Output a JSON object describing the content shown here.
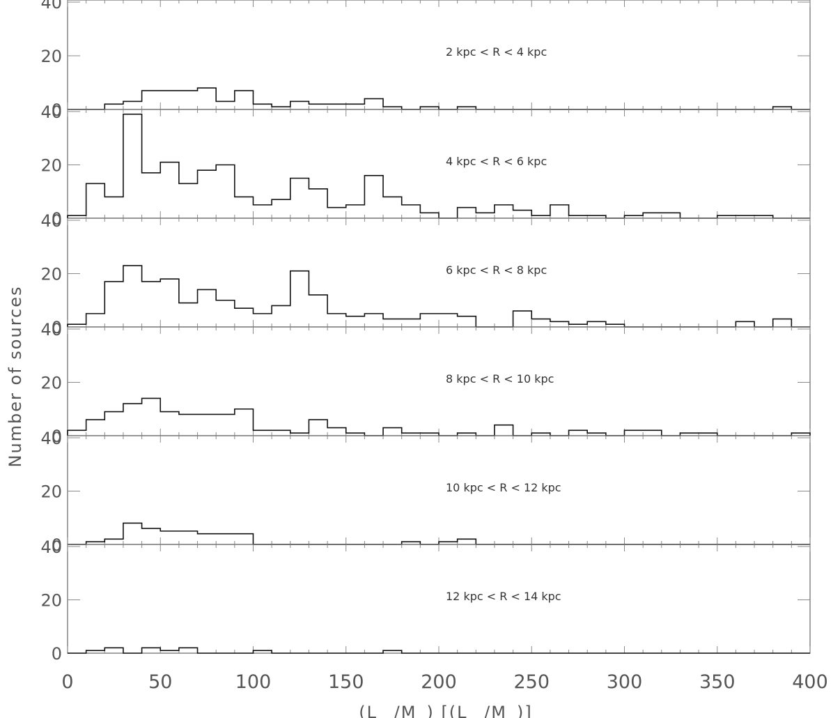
{
  "chart_data": {
    "type": "histogram",
    "ylabel": "Number of sources",
    "xlabel": "(L_ /M_) [(L_ /M_)]",
    "xlim": [
      0,
      400
    ],
    "ylim": [
      0,
      40
    ],
    "x_ticks": [
      "0",
      "50",
      "100",
      "150",
      "200",
      "250",
      "300",
      "350",
      "400"
    ],
    "y_ticks": [
      "0",
      "20",
      "40"
    ],
    "bin_edges": [
      0,
      10,
      20,
      30,
      40,
      50,
      60,
      70,
      80,
      90,
      100,
      110,
      120,
      130,
      140,
      150,
      160,
      170,
      180,
      190,
      200,
      210,
      220,
      230,
      240,
      250,
      260,
      270,
      280,
      290,
      300,
      310,
      320,
      330,
      340,
      350,
      360,
      370,
      380,
      390,
      400
    ],
    "panels": [
      {
        "label": "2 kpc < R < 4 kpc",
        "values": [
          0,
          0,
          2,
          3,
          7,
          7,
          7,
          8,
          3,
          7,
          2,
          1,
          3,
          2,
          2,
          2,
          4,
          1,
          0,
          1,
          0,
          1,
          0,
          0,
          0,
          0,
          0,
          0,
          0,
          0,
          0,
          0,
          0,
          0,
          0,
          0,
          0,
          0,
          1,
          0
        ]
      },
      {
        "label": "4 kpc < R < 6 kpc",
        "values": [
          1,
          13,
          8,
          39,
          17,
          21,
          13,
          18,
          20,
          8,
          5,
          7,
          15,
          11,
          4,
          5,
          16,
          8,
          5,
          2,
          0,
          4,
          2,
          5,
          3,
          1,
          5,
          1,
          1,
          0,
          1,
          2,
          2,
          0,
          0,
          1,
          1,
          1,
          0,
          0
        ]
      },
      {
        "label": "6 kpc < R < 8 kpc",
        "values": [
          1,
          5,
          17,
          23,
          17,
          18,
          9,
          14,
          10,
          7,
          5,
          8,
          21,
          12,
          5,
          4,
          5,
          3,
          3,
          5,
          5,
          4,
          0,
          0,
          6,
          3,
          2,
          1,
          2,
          1,
          0,
          0,
          0,
          0,
          0,
          0,
          2,
          0,
          3,
          0
        ]
      },
      {
        "label": "8 kpc < R < 10 kpc",
        "values": [
          2,
          6,
          9,
          12,
          14,
          9,
          8,
          8,
          8,
          10,
          2,
          2,
          1,
          6,
          3,
          1,
          0,
          3,
          1,
          1,
          0,
          1,
          0,
          4,
          0,
          1,
          0,
          2,
          1,
          0,
          2,
          2,
          0,
          1,
          1,
          0,
          0,
          0,
          0,
          1
        ]
      },
      {
        "label": "10 kpc < R < 12 kpc",
        "values": [
          0,
          1,
          2,
          8,
          6,
          5,
          5,
          4,
          4,
          4,
          0,
          0,
          0,
          0,
          0,
          0,
          0,
          0,
          1,
          0,
          1,
          2,
          0,
          0,
          0,
          0,
          0,
          0,
          0,
          0,
          0,
          0,
          0,
          0,
          0,
          0,
          0,
          0,
          0,
          0
        ]
      },
      {
        "label": "12 kpc < R < 14 kpc",
        "values": [
          0,
          1,
          2,
          0,
          2,
          1,
          2,
          0,
          0,
          0,
          1,
          0,
          0,
          0,
          0,
          0,
          0,
          1,
          0,
          0,
          0,
          0,
          0,
          0,
          0,
          0,
          0,
          0,
          0,
          0,
          0,
          0,
          0,
          0,
          0,
          0,
          0,
          0,
          0,
          0
        ]
      }
    ]
  }
}
